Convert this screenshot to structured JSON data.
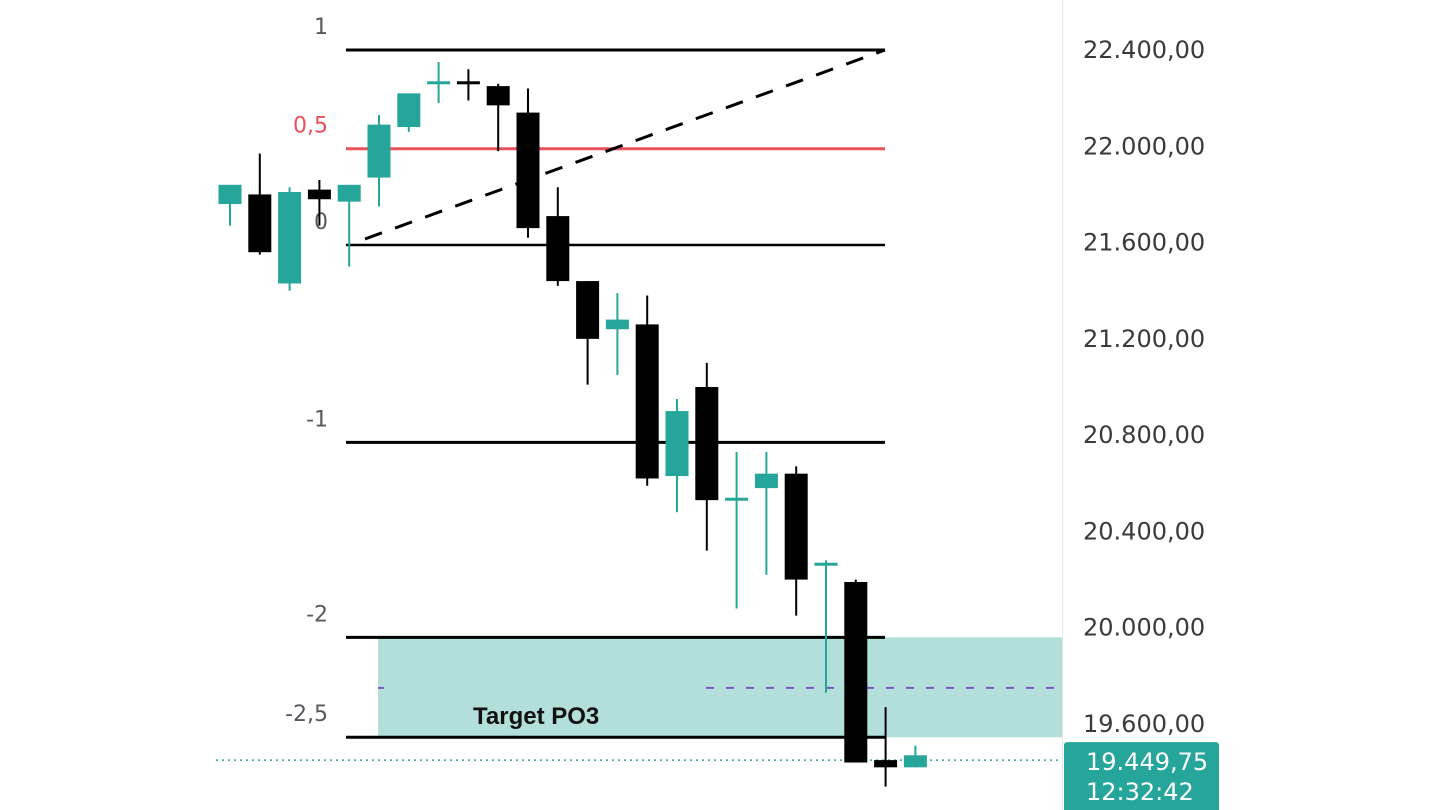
{
  "chart_data": {
    "type": "candlestick",
    "title": "",
    "xlabel": "",
    "ylabel": "",
    "ylim": [
      19300,
      22550
    ],
    "grid": false,
    "y_axis": {
      "position": "right",
      "ticks": [
        22400,
        22000,
        21600,
        21200,
        20800,
        20400,
        20000,
        19600
      ],
      "tick_labels": [
        "22.400,00",
        "22.000,00",
        "21.600,00",
        "21.200,00",
        "20.800,00",
        "20.400,00",
        "20.000,00",
        "19.600,00"
      ]
    },
    "current_price": {
      "value": 19449.75,
      "label": "19.449,75",
      "countdown": "12:32:42",
      "color": "#26a69a"
    },
    "colors": {
      "up": "#26a69a",
      "down": "#000000",
      "fib_mid": "#e8505b",
      "fib_line": "#000000",
      "zone_fill": "#b2dfd9",
      "midline": "#7e57c2"
    },
    "candles": [
      {
        "open": 21760,
        "high": 21830,
        "low": 21670,
        "close": 21840
      },
      {
        "open": 21800,
        "high": 21970,
        "low": 21550,
        "close": 21560
      },
      {
        "open": 21430,
        "high": 21830,
        "low": 21400,
        "close": 21810
      },
      {
        "open": 21820,
        "high": 21860,
        "low": 21670,
        "close": 21780
      },
      {
        "open": 21770,
        "high": 21820,
        "low": 21500,
        "close": 21840
      },
      {
        "open": 21870,
        "high": 22130,
        "low": 21750,
        "close": 22090
      },
      {
        "open": 22080,
        "high": 22200,
        "low": 22060,
        "close": 22220
      },
      {
        "open": 22260,
        "high": 22350,
        "low": 22180,
        "close": 22270
      },
      {
        "open": 22270,
        "high": 22320,
        "low": 22190,
        "close": 22265
      },
      {
        "open": 22250,
        "high": 22260,
        "low": 21980,
        "close": 22170
      },
      {
        "open": 22140,
        "high": 22240,
        "low": 21620,
        "close": 21660
      },
      {
        "open": 21710,
        "high": 21830,
        "low": 21420,
        "close": 21440
      },
      {
        "open": 21440,
        "high": 21440,
        "low": 21010,
        "close": 21200
      },
      {
        "open": 21240,
        "high": 21390,
        "low": 21050,
        "close": 21280
      },
      {
        "open": 21260,
        "high": 21380,
        "low": 20590,
        "close": 20620
      },
      {
        "open": 20630,
        "high": 20950,
        "low": 20480,
        "close": 20900
      },
      {
        "open": 21000,
        "high": 21100,
        "low": 20320,
        "close": 20530
      },
      {
        "open": 20530,
        "high": 20730,
        "low": 20080,
        "close": 20540
      },
      {
        "open": 20580,
        "high": 20730,
        "low": 20220,
        "close": 20640
      },
      {
        "open": 20640,
        "high": 20670,
        "low": 20050,
        "close": 20200
      },
      {
        "open": 20270,
        "high": 20280,
        "low": 19730,
        "close": 20270
      },
      {
        "open": 20190,
        "high": 20200,
        "low": 19440,
        "close": 19440
      },
      {
        "open": 19450,
        "high": 19670,
        "low": 19340,
        "close": 19420
      },
      {
        "open": 19420,
        "high": 19510,
        "low": 19420,
        "close": 19470
      }
    ],
    "fibonacci": {
      "levels": [
        {
          "ratio": 1,
          "label": "1",
          "price": 22400,
          "color": "#000000"
        },
        {
          "ratio": 0.5,
          "label": "0,5",
          "price": 21990,
          "color": "#e8505b"
        },
        {
          "ratio": 0,
          "label": "0",
          "price": 21590,
          "color": "#000000"
        },
        {
          "ratio": -1,
          "label": "-1",
          "price": 20770,
          "color": "#000000"
        },
        {
          "ratio": -2,
          "label": "-2",
          "price": 19960,
          "color": "#000000"
        },
        {
          "ratio": -2.5,
          "label": "-2,5",
          "price": 19545,
          "color": "#000000"
        }
      ],
      "trend_line": {
        "from_price": 21590,
        "to_price": 22400,
        "style": "dashed"
      }
    },
    "annotations": [
      {
        "type": "zone",
        "label": "Target PO3",
        "top_price": 19960,
        "bottom_price": 19545,
        "color": "#b2dfd9"
      },
      {
        "type": "dashed-line",
        "price": 19750,
        "color": "#7e57c2"
      },
      {
        "type": "dotted-line",
        "price": 19449.75,
        "color": "#26a69a"
      }
    ]
  }
}
